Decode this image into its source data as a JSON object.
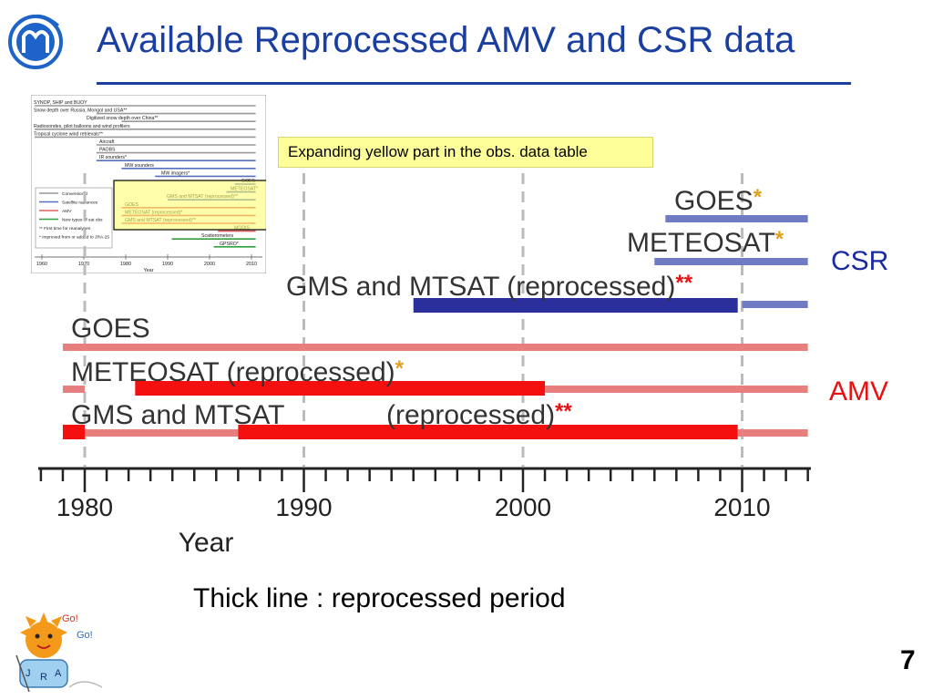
{
  "title": "Available Reprocessed AMV and CSR data",
  "note": "Expanding yellow part in the obs. data table",
  "side_labels": {
    "csr": "CSR",
    "amv": "AMV"
  },
  "caption": "Thick line : reprocessed period",
  "page_number": "7",
  "mascot_text": {
    "go1": "Go!",
    "go2": "Go!",
    "letters": [
      "J",
      "R",
      "A"
    ]
  },
  "colors": {
    "title": "#1a3fa0",
    "csr_thin": "#6f7cc4",
    "csr_thick": "#2a2f9c",
    "amv_thin": "#e87e7e",
    "amv_thick": "#f51010",
    "note_bg": "#ffff99",
    "star": "#e0a020"
  },
  "inset_table": {
    "rows": [
      "SYNOP, SHIP and BUOY",
      "Snow depth over Russia, Mongol and USA**",
      "Digitized snow depth over China**",
      "Radiosondes, pilot balloons and wind profilers",
      "Tropical cyclone wind retrievals**",
      "Aircraft",
      "PAOBS",
      "IR sounders*",
      "MW sounders",
      "MW imagers*",
      "GOES",
      "METEOSAT*",
      "GMS and MTSAT (reprocessed)**",
      "GOES",
      "METEOSAT (reprocessed)*",
      "GMS and MTSAT (reprocessed)**",
      "MODIS",
      "Scatterometers",
      "GPSRO*"
    ],
    "legend": [
      "Conventional",
      "Satellite radiances",
      "AMV",
      "New types of sat obs",
      "** First time for reanalyses",
      "* Improved from or added to JRA-25"
    ],
    "ticks": [
      "1960",
      "1970",
      "1980",
      "1990",
      "2000",
      "2010"
    ],
    "xlabel": "Year"
  },
  "chart_data": {
    "type": "timeline",
    "xlabel": "Year",
    "xlim": [
      1978,
      2013
    ],
    "major_ticks": [
      1980,
      1990,
      2000,
      2010
    ],
    "dashed_lines": [
      1980,
      1990,
      2000,
      2010
    ],
    "groups": [
      {
        "name": "CSR",
        "series": [
          {
            "label": "GOES",
            "marker": "*",
            "thin": [
              [
                2006.5,
                2013
              ]
            ],
            "thick": []
          },
          {
            "label": "METEOSAT",
            "marker": "*",
            "thin": [
              [
                2006,
                2013
              ]
            ],
            "thick": []
          },
          {
            "label": "GMS and MTSAT (reprocessed)",
            "marker": "**",
            "thin": [
              [
                2010,
                2013
              ]
            ],
            "thick": [
              [
                1995,
                2009.8
              ]
            ]
          }
        ]
      },
      {
        "name": "AMV",
        "series": [
          {
            "label": "GOES",
            "marker": "",
            "thin": [
              [
                1979,
                2013
              ]
            ],
            "thick": []
          },
          {
            "label": "METEOSAT (reprocessed)",
            "marker": "*",
            "thin": [
              [
                1979,
                1980
              ],
              [
                2001,
                2013
              ]
            ],
            "thick": [
              [
                1982.3,
                2001
              ]
            ]
          },
          {
            "label": "GMS and MTSAT",
            "label2": "(reprocessed)",
            "marker": "**",
            "thin": [
              [
                1980,
                1987
              ],
              [
                2009.8,
                2013
              ]
            ],
            "thick": [
              [
                1979,
                1980
              ],
              [
                1987,
                2009.8
              ]
            ]
          }
        ]
      }
    ]
  }
}
